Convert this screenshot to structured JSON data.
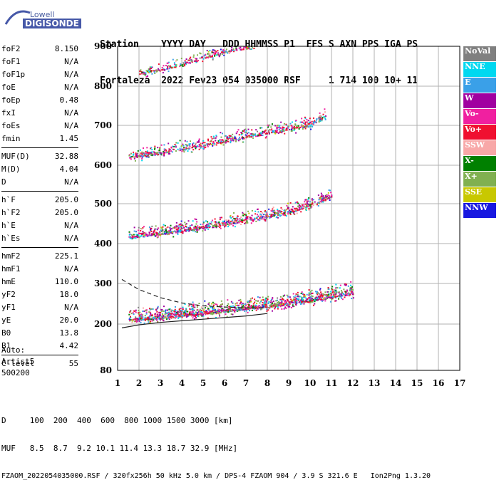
{
  "logo": {
    "line1": "Lowell",
    "line2": "DIGISONDE"
  },
  "header": {
    "row1": "Station    YYYY DAY   DDD HHMMSS P1  FFS S AXN PPS IGA PS",
    "row2": "Fortaleza  2022 Fev23 054 035000 RSF     1 714 100 10+ 11"
  },
  "params_groups": [
    [
      [
        "foF2",
        "8.150"
      ],
      [
        "foF1",
        "N/A"
      ],
      [
        "foF1p",
        "N/A"
      ],
      [
        "foE",
        "N/A"
      ],
      [
        "foEp",
        "0.48"
      ],
      [
        "fxI",
        "N/A"
      ],
      [
        "foEs",
        "N/A"
      ],
      [
        "fmin",
        "1.45"
      ]
    ],
    [
      [
        "MUF(D)",
        "32.88"
      ],
      [
        "M(D)",
        "4.04"
      ],
      [
        "D",
        "N/A"
      ]
    ],
    [
      [
        "h`F",
        "205.0"
      ],
      [
        "h`F2",
        "205.0"
      ],
      [
        "h`E",
        "N/A"
      ],
      [
        "h`Es",
        "N/A"
      ]
    ],
    [
      [
        "hmF2",
        "225.1"
      ],
      [
        "hmF1",
        "N/A"
      ],
      [
        "hmE",
        "110.0"
      ],
      [
        "yF2",
        "18.0"
      ],
      [
        "yF1",
        "N/A"
      ],
      [
        "yE",
        "20.0"
      ],
      [
        "B0",
        "13.8"
      ],
      [
        "B1",
        "4.42"
      ]
    ],
    [
      [
        "C-level",
        "55"
      ]
    ]
  ],
  "auto": {
    "line1": "Auto:",
    "line2": "Artist5",
    "line3": "500200"
  },
  "legend": [
    {
      "label": "NoVal",
      "color": "#808080"
    },
    {
      "label": "NNE",
      "color": "#00d8f0"
    },
    {
      "label": "E",
      "color": "#3aa0e8"
    },
    {
      "label": "W",
      "color": "#a000a0"
    },
    {
      "label": "Vo-",
      "color": "#f020a0"
    },
    {
      "label": "Vo+",
      "color": "#f01030"
    },
    {
      "label": "SSW",
      "color": "#f8a8a8"
    },
    {
      "label": "X-",
      "color": "#008000"
    },
    {
      "label": "X+",
      "color": "#80b050"
    },
    {
      "label": "SSE",
      "color": "#c8c800"
    },
    {
      "label": "NNW",
      "color": "#1818e0"
    }
  ],
  "footer": {
    "line1": "D     100  200  400  600  800 1000 1500 3000 [km]",
    "line2": "MUF   8.5  8.7  9.2 10.1 11.4 13.3 18.7 32.9 [MHz]",
    "line3": "FZAOM_2022054035000.RSF / 320fx256h 50 kHz 5.0 km / DPS-4 FZAOM 904 / 3.9 S 321.6 E   Ion2Png 1.3.20"
  },
  "chart_data": {
    "type": "scatter",
    "title": "",
    "xlabel": "",
    "ylabel": "",
    "xlim": [
      1,
      17
    ],
    "ylim": [
      80,
      900
    ],
    "x_ticks": [
      1,
      2,
      3,
      4,
      5,
      6,
      7,
      8,
      9,
      10,
      11,
      12,
      13,
      14,
      15,
      16,
      17
    ],
    "y_ticks": [
      80,
      200,
      300,
      400,
      500,
      600,
      700,
      800,
      900
    ],
    "y_scale": "nonlinear (piecewise)",
    "grid": true,
    "series": [
      {
        "echo": "F1 trace",
        "x": [
          1.5,
          2,
          3,
          4,
          5,
          6,
          7,
          8,
          9,
          10,
          11,
          12
        ],
        "y": [
          210,
          212,
          216,
          222,
          226,
          232,
          238,
          244,
          250,
          258,
          266,
          275
        ]
      },
      {
        "echo": "F2 trace",
        "x": [
          1.5,
          2,
          3,
          4,
          5,
          6,
          7,
          8,
          9,
          10,
          11
        ],
        "y": [
          415,
          418,
          425,
          432,
          440,
          448,
          458,
          468,
          478,
          495,
          520
        ]
      },
      {
        "echo": "F3 trace",
        "x": [
          1.5,
          2,
          3,
          4,
          5,
          6,
          7,
          8,
          9,
          10,
          10.7
        ],
        "y": [
          620,
          623,
          630,
          640,
          650,
          660,
          670,
          680,
          690,
          700,
          720
        ]
      },
      {
        "echo": "F4 trace",
        "x": [
          2,
          3,
          4,
          5,
          6,
          7,
          7.5
        ],
        "y": [
          830,
          840,
          855,
          870,
          885,
          895,
          900
        ]
      }
    ],
    "curves": [
      {
        "style": "dashed",
        "x": [
          1.2,
          2,
          3,
          4,
          5,
          6,
          7,
          8
        ],
        "y": [
          310,
          285,
          265,
          252,
          245,
          242,
          240,
          240
        ]
      },
      {
        "style": "solid",
        "x": [
          1.2,
          2,
          3,
          4,
          5,
          6,
          7,
          8
        ],
        "y": [
          190,
          198,
          204,
          208,
          212,
          216,
          220,
          226
        ]
      }
    ]
  }
}
